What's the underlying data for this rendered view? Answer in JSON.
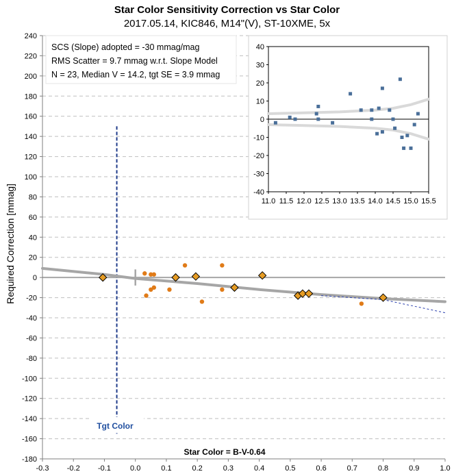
{
  "title": "Star Color Sensitivity Correction vs Star Color",
  "subtitle": "2017.05.14, KIC846, M14\"(V), ST-10XME, 5x",
  "colors": {
    "axis": "#7f7f7f",
    "grid": "#bfbfbf",
    "trend": "#a6a6a6",
    "circle_points": "#e07b18",
    "diamond_fill": "#e69c24",
    "diamond_stroke": "#000000",
    "target_line": "#1f3b8a",
    "inset_points": "#4a6f99",
    "inset_envelope": "#d9d9d9"
  },
  "chart_data": [
    {
      "type": "scatter",
      "title": "",
      "xlabel": "Star Color = B-V-0.64",
      "ylabel": "Required Correction [mmag]",
      "xlim": [
        -0.3,
        1.0
      ],
      "ylim": [
        -180,
        240
      ],
      "xticks": [
        -0.3,
        -0.2,
        -0.1,
        0.0,
        0.1,
        0.2,
        0.3,
        0.4,
        0.5,
        0.6,
        0.7,
        0.8,
        0.9,
        1.0
      ],
      "yticks": [
        -180,
        -160,
        -140,
        -120,
        -100,
        -80,
        -60,
        -40,
        -20,
        0,
        20,
        40,
        60,
        80,
        100,
        120,
        140,
        160,
        180,
        200,
        220,
        240
      ],
      "grid": "horizontal dashed",
      "annotations": [
        "SCS (Slope) adopted  =  -30 mmag/mag",
        "RMS Scatter = 9.7 mmag w.r.t. Slope Model",
        "N = 23,  Median V = 14.2, tgt SE = 3.9 mmag",
        "Tgt Color"
      ],
      "target_color_x": -0.06,
      "series": [
        {
          "marker": "circle",
          "points": [
            {
              "x": 0.03,
              "y": 4
            },
            {
              "x": 0.035,
              "y": -18
            },
            {
              "x": 0.05,
              "y": 3
            },
            {
              "x": 0.05,
              "y": -12
            },
            {
              "x": 0.06,
              "y": 3
            },
            {
              "x": 0.06,
              "y": -10
            },
            {
              "x": 0.11,
              "y": -12
            },
            {
              "x": 0.16,
              "y": 12
            },
            {
              "x": 0.215,
              "y": -24
            },
            {
              "x": 0.28,
              "y": 12
            },
            {
              "x": 0.28,
              "y": -12
            },
            {
              "x": 0.73,
              "y": -26
            }
          ]
        },
        {
          "marker": "diamond",
          "points": [
            {
              "x": -0.105,
              "y": 0
            },
            {
              "x": 0.13,
              "y": 0
            },
            {
              "x": 0.195,
              "y": 1
            },
            {
              "x": 0.32,
              "y": -10
            },
            {
              "x": 0.41,
              "y": 2
            },
            {
              "x": 0.525,
              "y": -18
            },
            {
              "x": 0.54,
              "y": -16
            },
            {
              "x": 0.56,
              "y": -16
            },
            {
              "x": 0.8,
              "y": -20
            }
          ]
        },
        {
          "type": "line",
          "style": "solid thick",
          "points": [
            {
              "x": -0.3,
              "y": 9
            },
            {
              "x": -0.1,
              "y": 3
            },
            {
              "x": 0.0,
              "y": -1
            },
            {
              "x": 0.2,
              "y": -6
            },
            {
              "x": 0.4,
              "y": -12
            },
            {
              "x": 0.6,
              "y": -17
            },
            {
              "x": 0.8,
              "y": -21
            },
            {
              "x": 1.0,
              "y": -24
            }
          ]
        },
        {
          "type": "line",
          "style": "dashed",
          "points": [
            {
              "x": 0.6,
              "y": -18
            },
            {
              "x": 0.8,
              "y": -22
            },
            {
              "x": 1.0,
              "y": -35
            }
          ]
        }
      ]
    },
    {
      "type": "scatter",
      "title": "",
      "xlim": [
        11.0,
        15.5
      ],
      "ylim": [
        -40,
        40
      ],
      "xticks": [
        11.0,
        11.5,
        12.0,
        12.5,
        13.0,
        13.5,
        14.0,
        14.5,
        15.0,
        15.5
      ],
      "yticks": [
        -40,
        -30,
        -20,
        -10,
        0,
        10,
        20,
        30,
        40
      ],
      "points": [
        {
          "x": 11.2,
          "y": -2
        },
        {
          "x": 11.6,
          "y": 1
        },
        {
          "x": 11.75,
          "y": 0
        },
        {
          "x": 12.35,
          "y": 3
        },
        {
          "x": 12.4,
          "y": 7
        },
        {
          "x": 12.4,
          "y": 0
        },
        {
          "x": 12.8,
          "y": -2
        },
        {
          "x": 13.3,
          "y": 14
        },
        {
          "x": 13.6,
          "y": 5
        },
        {
          "x": 13.9,
          "y": 5
        },
        {
          "x": 13.9,
          "y": 0
        },
        {
          "x": 14.05,
          "y": -8
        },
        {
          "x": 14.1,
          "y": 6
        },
        {
          "x": 14.2,
          "y": 17
        },
        {
          "x": 14.2,
          "y": -7
        },
        {
          "x": 14.4,
          "y": 5
        },
        {
          "x": 14.5,
          "y": 0
        },
        {
          "x": 14.55,
          "y": -5
        },
        {
          "x": 14.7,
          "y": 22
        },
        {
          "x": 14.75,
          "y": -10
        },
        {
          "x": 14.8,
          "y": -16
        },
        {
          "x": 14.9,
          "y": -9
        },
        {
          "x": 15.0,
          "y": -16
        },
        {
          "x": 15.1,
          "y": -3
        },
        {
          "x": 15.2,
          "y": 3
        }
      ],
      "envelope_upper": [
        {
          "x": 11.0,
          "y": 3
        },
        {
          "x": 12.0,
          "y": 3.5
        },
        {
          "x": 13.0,
          "y": 4
        },
        {
          "x": 14.0,
          "y": 5
        },
        {
          "x": 14.5,
          "y": 6
        },
        {
          "x": 15.0,
          "y": 8
        },
        {
          "x": 15.5,
          "y": 11
        }
      ],
      "envelope_lower": [
        {
          "x": 11.0,
          "y": -3
        },
        {
          "x": 12.0,
          "y": -3.5
        },
        {
          "x": 13.0,
          "y": -4
        },
        {
          "x": 14.0,
          "y": -5
        },
        {
          "x": 14.5,
          "y": -6
        },
        {
          "x": 15.0,
          "y": -8
        },
        {
          "x": 15.5,
          "y": -11
        }
      ]
    }
  ]
}
